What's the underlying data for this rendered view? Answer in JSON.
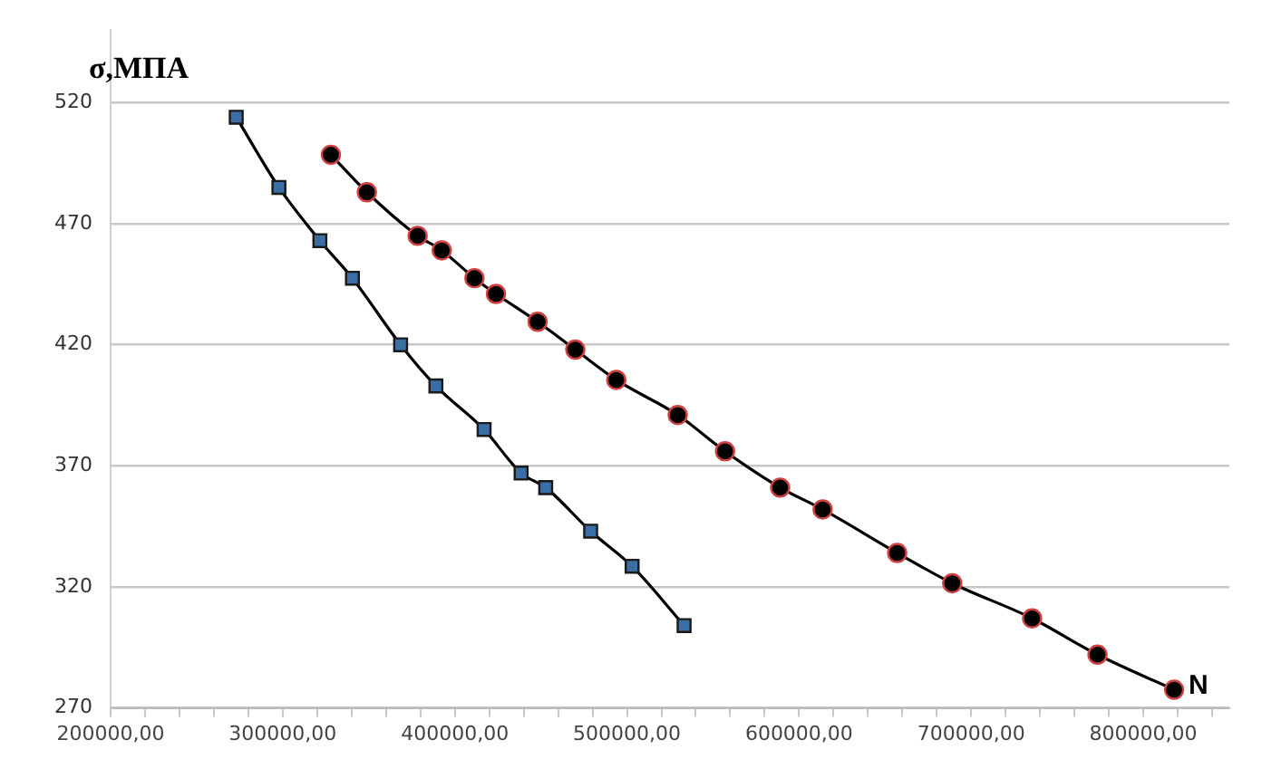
{
  "chart_data": {
    "type": "line",
    "ylabel": "σ,МПА",
    "xlabel": "N",
    "xlim": [
      200000,
      850000
    ],
    "xticks": [
      {
        "value": 200000,
        "label": "200000,00"
      },
      {
        "value": 220000,
        "label": null
      },
      {
        "value": 240000,
        "label": null
      },
      {
        "value": 260000,
        "label": null
      },
      {
        "value": 280000,
        "label": null
      },
      {
        "value": 300000,
        "label": "300000,00"
      },
      {
        "value": 320000,
        "label": null
      },
      {
        "value": 340000,
        "label": null
      },
      {
        "value": 360000,
        "label": null
      },
      {
        "value": 380000,
        "label": null
      },
      {
        "value": 400000,
        "label": "400000,00"
      },
      {
        "value": 420000,
        "label": null
      },
      {
        "value": 440000,
        "label": null
      },
      {
        "value": 460000,
        "label": null
      },
      {
        "value": 480000,
        "label": null
      },
      {
        "value": 500000,
        "label": "500000,00"
      },
      {
        "value": 520000,
        "label": null
      },
      {
        "value": 540000,
        "label": null
      },
      {
        "value": 560000,
        "label": null
      },
      {
        "value": 580000,
        "label": null
      },
      {
        "value": 600000,
        "label": "600000,00"
      },
      {
        "value": 620000,
        "label": null
      },
      {
        "value": 640000,
        "label": null
      },
      {
        "value": 660000,
        "label": null
      },
      {
        "value": 680000,
        "label": null
      },
      {
        "value": 700000,
        "label": "700000,00"
      },
      {
        "value": 720000,
        "label": null
      },
      {
        "value": 740000,
        "label": null
      },
      {
        "value": 760000,
        "label": null
      },
      {
        "value": 780000,
        "label": null
      },
      {
        "value": 800000,
        "label": "800000,00"
      },
      {
        "value": 820000,
        "label": null
      },
      {
        "value": 840000,
        "label": null
      }
    ],
    "ylim": [
      270,
      550
    ],
    "yticks": [
      270,
      320,
      370,
      420,
      470,
      520
    ],
    "grid": "y",
    "legend": false,
    "series": [
      {
        "color": "#3a6ea5",
        "marker": "square",
        "x": [
          273000,
          297800,
          321600,
          340500,
          368500,
          389000,
          417000,
          438500,
          452800,
          478900,
          503000,
          533200
        ],
        "values": [
          514,
          485,
          463,
          447.5,
          420,
          403,
          385,
          367,
          361,
          343,
          328.5,
          304
        ]
      },
      {
        "color": "#000000",
        "marker": "circle",
        "x": [
          328000,
          348900,
          378400,
          392400,
          411400,
          423900,
          448100,
          470000,
          493800,
          529500,
          557000,
          589000,
          613700,
          657000,
          689000,
          735400,
          773400,
          817900
        ],
        "values": [
          498.5,
          483,
          465,
          459,
          447.5,
          441,
          429.5,
          418,
          405.5,
          391,
          376,
          361,
          352,
          334,
          321.5,
          307,
          292,
          277.5
        ]
      }
    ]
  }
}
